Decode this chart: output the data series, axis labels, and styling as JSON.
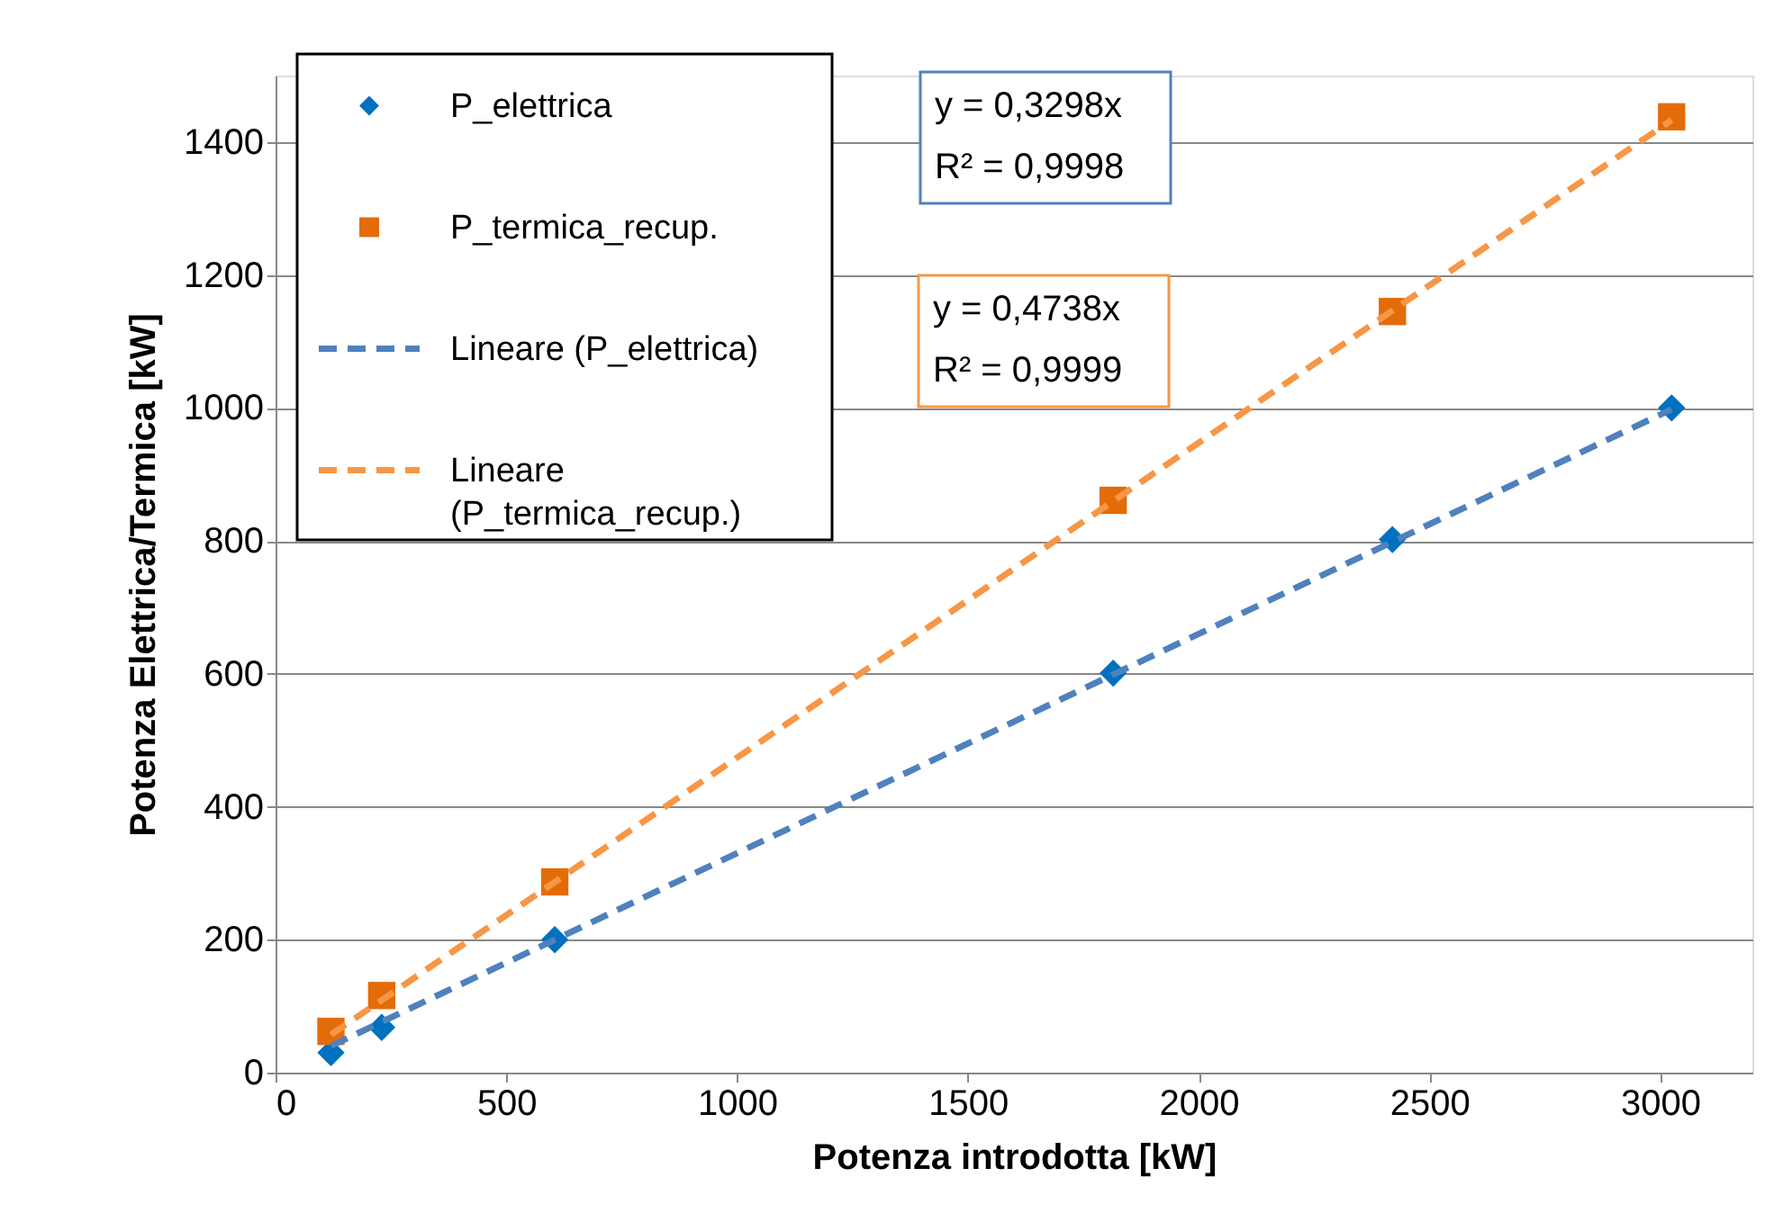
{
  "chart_data": {
    "type": "scatter",
    "xlabel": "Potenza introdotta [kW]",
    "ylabel": "Potenza Elettrica/Termica [kW]",
    "xlim": [
      0,
      3200
    ],
    "xticks": [
      0,
      500,
      1000,
      1500,
      2000,
      2500,
      3000
    ],
    "ylim": [
      0,
      1500
    ],
    "yticks": [
      0,
      200,
      400,
      600,
      800,
      1000,
      1200,
      1400
    ],
    "grid": "y",
    "legend": "top left",
    "series": [
      {
        "name": "P_elettrica",
        "marker": "diamond",
        "color": "#0070c0",
        "x": [
          120,
          230,
          605,
          1815,
          2420,
          3025
        ],
        "values": [
          30,
          68,
          200,
          601,
          802,
          1000
        ]
      },
      {
        "name": "P_termica_recup.",
        "marker": "square",
        "color": "#e36c09",
        "x": [
          120,
          230,
          605,
          1815,
          2420,
          3025
        ],
        "values": [
          62,
          116,
          287,
          861,
          1145,
          1438
        ]
      },
      {
        "name": "Lineare (P_elettrica)",
        "type": "line",
        "line_style": "dashed",
        "color": "#4f81bd",
        "x": [
          120,
          3025
        ],
        "values": [
          40,
          998
        ]
      },
      {
        "name": "Lineare (P_termica_recup.)",
        "type": "line",
        "line_style": "dashed",
        "color": "#f79646",
        "x": [
          120,
          3025
        ],
        "values": [
          57,
          1433
        ]
      }
    ],
    "annotations": [
      "y = 0,3298x",
      "R² = 0,9998",
      "y = 0,4738x",
      "R² = 0,9999"
    ]
  }
}
